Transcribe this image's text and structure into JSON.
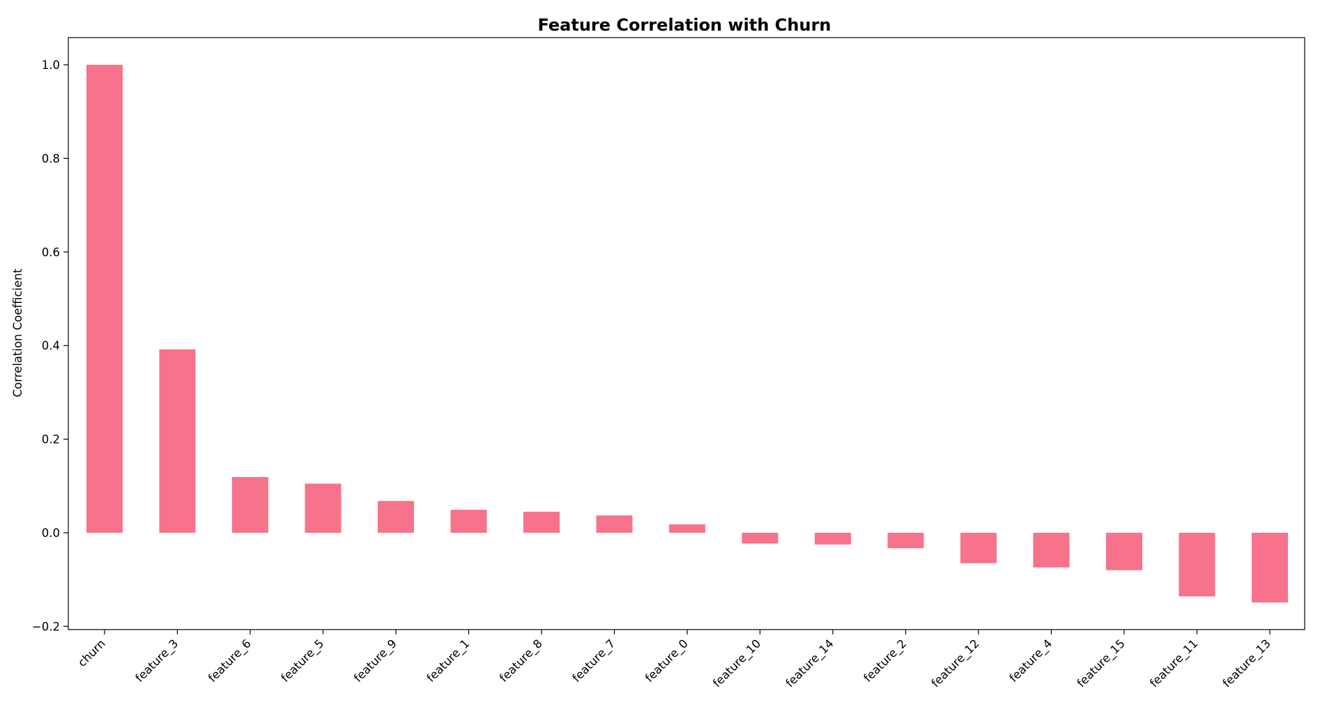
{
  "chart_data": {
    "type": "bar",
    "title": "Feature Correlation with Churn",
    "xlabel": "",
    "ylabel": "Correlation Coefficient",
    "categories": [
      "churn",
      "feature_3",
      "feature_6",
      "feature_5",
      "feature_9",
      "feature_1",
      "feature_8",
      "feature_7",
      "feature_0",
      "feature_10",
      "feature_14",
      "feature_2",
      "feature_12",
      "feature_4",
      "feature_15",
      "feature_11",
      "feature_13"
    ],
    "values": [
      1.0,
      0.392,
      0.119,
      0.105,
      0.068,
      0.049,
      0.045,
      0.037,
      0.018,
      -0.023,
      -0.025,
      -0.033,
      -0.065,
      -0.074,
      -0.08,
      -0.136,
      -0.149
    ],
    "ylim": [
      -0.2,
      1.0
    ],
    "yticks": [
      -0.2,
      0.0,
      0.2,
      0.4,
      0.6,
      0.8,
      1.0
    ],
    "ytick_labels": [
      "−0.2",
      "0.0",
      "0.2",
      "0.4",
      "0.6",
      "0.8",
      "1.0"
    ],
    "grid": false,
    "bar_color": "#f7728b"
  }
}
